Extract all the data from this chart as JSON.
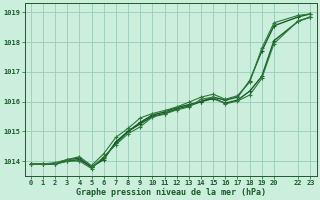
{
  "title": "Graphe pression niveau de la mer (hPa)",
  "bg_color": "#cceedd",
  "grid_color": "#99ccbb",
  "line_color_dark": "#1a5c2a",
  "line_color_med": "#2d7a3a",
  "xlim": [
    -0.5,
    23.5
  ],
  "ylim": [
    1013.5,
    1019.3
  ],
  "yticks": [
    1014,
    1015,
    1016,
    1017,
    1018,
    1019
  ],
  "xticks": [
    0,
    1,
    2,
    3,
    4,
    5,
    6,
    7,
    8,
    9,
    10,
    11,
    12,
    13,
    14,
    15,
    16,
    17,
    18,
    19,
    20,
    22,
    23
  ],
  "xtick_labels": [
    "0",
    "1",
    "2",
    "3",
    "4",
    "5",
    "6",
    "7",
    "8",
    "9",
    "10",
    "11",
    "12",
    "13",
    "14",
    "15",
    "16",
    "17",
    "18",
    "19",
    "20",
    "22",
    "23"
  ],
  "series": [
    {
      "x": [
        0,
        1,
        2,
        3,
        4,
        5,
        6,
        7,
        8,
        9,
        10,
        11,
        12,
        13,
        14,
        15,
        16,
        17,
        18,
        19,
        20,
        22,
        23
      ],
      "y": [
        1013.9,
        1013.9,
        1013.9,
        1014.05,
        1014.1,
        1013.8,
        1014.05,
        1014.65,
        1015.0,
        1015.3,
        1015.55,
        1015.65,
        1015.8,
        1015.9,
        1016.0,
        1016.15,
        1016.05,
        1016.15,
        1016.7,
        1017.7,
        1018.55,
        1018.85,
        1018.95
      ],
      "color": "#1a5c2a",
      "lw": 1.0,
      "ls": "-"
    },
    {
      "x": [
        0,
        1,
        2,
        3,
        4,
        5,
        6,
        7,
        8,
        9,
        10,
        11,
        12,
        13,
        14,
        15,
        16,
        17,
        18,
        19,
        20,
        22,
        23
      ],
      "y": [
        1013.9,
        1013.9,
        1013.9,
        1014.0,
        1014.05,
        1013.8,
        1014.1,
        1014.6,
        1015.0,
        1015.25,
        1015.5,
        1015.6,
        1015.75,
        1015.85,
        1016.0,
        1016.1,
        1015.95,
        1016.05,
        1016.35,
        1016.85,
        1018.05,
        1018.7,
        1018.85
      ],
      "color": "#1a5c2a",
      "lw": 1.0,
      "ls": "-"
    },
    {
      "x": [
        0,
        1,
        2,
        3,
        4,
        5,
        6,
        7,
        8,
        9,
        10,
        11,
        12,
        13,
        14,
        15,
        16,
        17,
        18,
        19,
        20,
        22,
        23
      ],
      "y": [
        1013.9,
        1013.9,
        1013.95,
        1014.05,
        1014.15,
        1013.85,
        1014.25,
        1014.8,
        1015.1,
        1015.45,
        1015.6,
        1015.7,
        1015.82,
        1015.98,
        1016.15,
        1016.25,
        1016.08,
        1016.2,
        1016.65,
        1017.8,
        1018.65,
        1018.9,
        1018.95
      ],
      "color": "#2d7a3a",
      "lw": 0.8,
      "ls": "-"
    },
    {
      "x": [
        0,
        1,
        2,
        3,
        4,
        5,
        6,
        7,
        8,
        9,
        10,
        11,
        12,
        13,
        14,
        15,
        16,
        17,
        18,
        19,
        20,
        22,
        23
      ],
      "y": [
        1013.9,
        1013.9,
        1013.9,
        1014.0,
        1014.0,
        1013.75,
        1014.15,
        1014.55,
        1014.92,
        1015.15,
        1015.48,
        1015.58,
        1015.72,
        1015.82,
        1016.08,
        1016.15,
        1015.92,
        1016.02,
        1016.22,
        1016.78,
        1017.95,
        1018.72,
        1018.83
      ],
      "color": "#2d7a3a",
      "lw": 0.8,
      "ls": "-"
    }
  ]
}
